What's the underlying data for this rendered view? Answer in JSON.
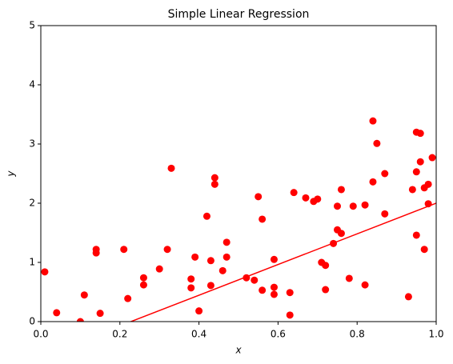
{
  "chart_data": {
    "type": "scatter",
    "title": "Simple Linear Regression",
    "x_label": "x",
    "y_label": "y",
    "xlim": [
      0,
      1
    ],
    "ylim": [
      0,
      5
    ],
    "xticks": [
      {
        "value": 0,
        "label": "0.0"
      },
      {
        "value": 0.2,
        "label": "0.2"
      },
      {
        "value": 0.4,
        "label": "0.4"
      },
      {
        "value": 0.6,
        "label": "0.6"
      },
      {
        "value": 0.8,
        "label": "0.8"
      },
      {
        "value": 1,
        "label": "1.0"
      }
    ],
    "yticks": [
      0,
      1,
      2,
      3,
      4,
      5
    ],
    "series": [
      {
        "type": "scatter",
        "color": "#ff0000",
        "x": [
          0.01,
          0.04,
          0.1,
          0.11,
          0.14,
          0.14,
          0.15,
          0.21,
          0.22,
          0.26,
          0.26,
          0.3,
          0.32,
          0.33,
          0.38,
          0.38,
          0.39,
          0.4,
          0.42,
          0.43,
          0.43,
          0.44,
          0.44,
          0.46,
          0.47,
          0.47,
          0.52,
          0.54,
          0.55,
          0.56,
          0.56,
          0.59,
          0.59,
          0.59,
          0.63,
          0.63,
          0.64,
          0.67,
          0.69,
          0.7,
          0.71,
          0.72,
          0.72,
          0.74,
          0.75,
          0.75,
          0.76,
          0.76,
          0.78,
          0.79,
          0.82,
          0.82,
          0.84,
          0.84,
          0.85,
          0.87,
          0.87,
          0.93,
          0.95,
          0.94,
          0.95,
          0.95,
          0.96,
          0.96,
          0.97,
          0.97,
          0.98,
          0.98,
          0.99
        ],
        "y": [
          0.84,
          0.15,
          0.0,
          0.45,
          1.22,
          1.16,
          0.14,
          1.22,
          0.39,
          0.74,
          0.62,
          0.89,
          1.22,
          2.59,
          0.72,
          0.57,
          1.09,
          0.18,
          1.78,
          1.03,
          0.61,
          2.43,
          2.32,
          0.86,
          1.34,
          1.09,
          0.74,
          0.7,
          2.11,
          1.73,
          0.53,
          1.05,
          0.46,
          0.58,
          0.11,
          0.49,
          2.18,
          2.09,
          2.03,
          2.07,
          1.0,
          0.95,
          0.54,
          1.32,
          1.95,
          1.55,
          2.23,
          1.49,
          0.73,
          1.95,
          1.97,
          0.62,
          2.36,
          3.39,
          3.01,
          1.82,
          2.5,
          0.42,
          2.53,
          2.23,
          1.46,
          3.2,
          3.18,
          2.7,
          1.22,
          2.26,
          2.32,
          1.99,
          2.77
        ]
      },
      {
        "type": "line",
        "color": "#ff0000",
        "x": [
          0,
          1
        ],
        "y": [
          -0.59,
          2.0
        ]
      }
    ]
  }
}
